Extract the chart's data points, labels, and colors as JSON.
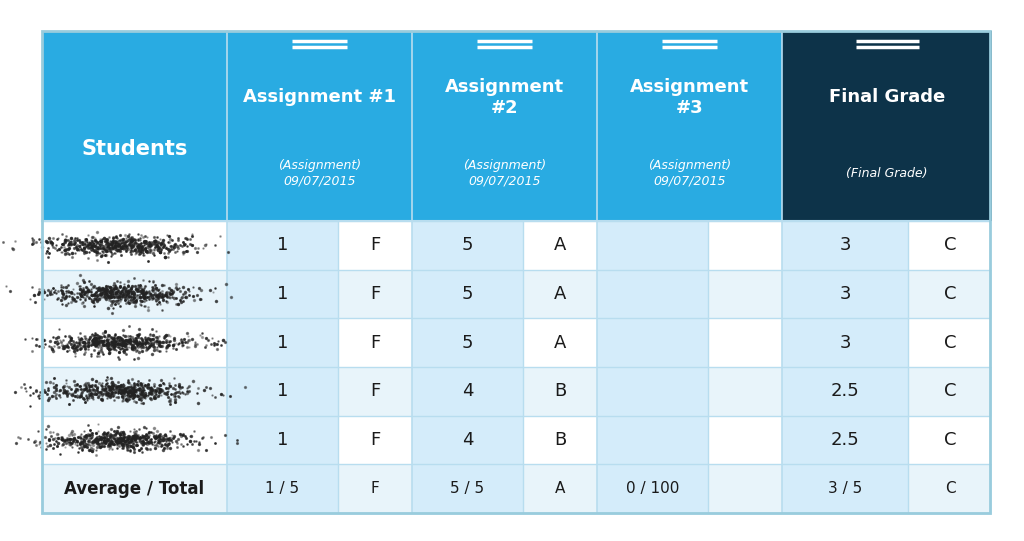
{
  "col_headers": [
    {
      "text": "Students",
      "line1": "",
      "line2": "",
      "line3": "",
      "bg": "#29ABE2",
      "text_color": "#FFFFFF"
    },
    {
      "text": "Assignment #1",
      "line1": "(Assignment)",
      "line2": "09/07/2015",
      "bg": "#29ABE2",
      "text_color": "#FFFFFF"
    },
    {
      "text": "Assignment\n#2",
      "line1": "(Assignment)",
      "line2": "09/07/2015",
      "bg": "#29ABE2",
      "text_color": "#FFFFFF"
    },
    {
      "text": "Assignment\n#3",
      "line1": "(Assignment)",
      "line2": "09/07/2015",
      "bg": "#29ABE2",
      "text_color": "#FFFFFF"
    },
    {
      "text": "Final Grade",
      "line1": "(Final Grade)",
      "line2": "",
      "bg": "#0D3349",
      "text_color": "#FFFFFF"
    }
  ],
  "rows": [
    {
      "a1": "1",
      "a1g": "F",
      "a2": "5",
      "a2g": "A",
      "a3": "",
      "a3g": "",
      "fg": "3",
      "fgg": "C"
    },
    {
      "a1": "1",
      "a1g": "F",
      "a2": "5",
      "a2g": "A",
      "a3": "",
      "a3g": "",
      "fg": "3",
      "fgg": "C"
    },
    {
      "a1": "1",
      "a1g": "F",
      "a2": "5",
      "a2g": "A",
      "a3": "",
      "a3g": "",
      "fg": "3",
      "fgg": "C"
    },
    {
      "a1": "1",
      "a1g": "F",
      "a2": "4",
      "a2g": "B",
      "a3": "",
      "a3g": "",
      "fg": "2.5",
      "fgg": "C"
    },
    {
      "a1": "1",
      "a1g": "F",
      "a2": "4",
      "a2g": "B",
      "a3": "",
      "a3g": "",
      "fg": "2.5",
      "fgg": "C"
    }
  ],
  "avg_row": {
    "a1": "1 / 5",
    "a1g": "F",
    "a2": "5 / 5",
    "a2g": "A",
    "a3": "0 / 100",
    "a3g": "",
    "fg": "3 / 5",
    "fgg": "C"
  },
  "header_bg": "#29ABE2",
  "final_grade_bg": "#0D3349",
  "row_bg_white": "#FFFFFF",
  "row_bg_light": "#E8F4FA",
  "score_col_bg": "#D4ECFA",
  "grade_col_bg_light": "#E8F4FA",
  "grade_col_bg_white": "#FFFFFF",
  "avg_row_bg": "#E8F4FA",
  "avg_score_bg": "#D4ECFA",
  "border_color": "#B8DDEF",
  "fig_bg": "#FFFFFF",
  "double_line_color": "#FFFFFF"
}
